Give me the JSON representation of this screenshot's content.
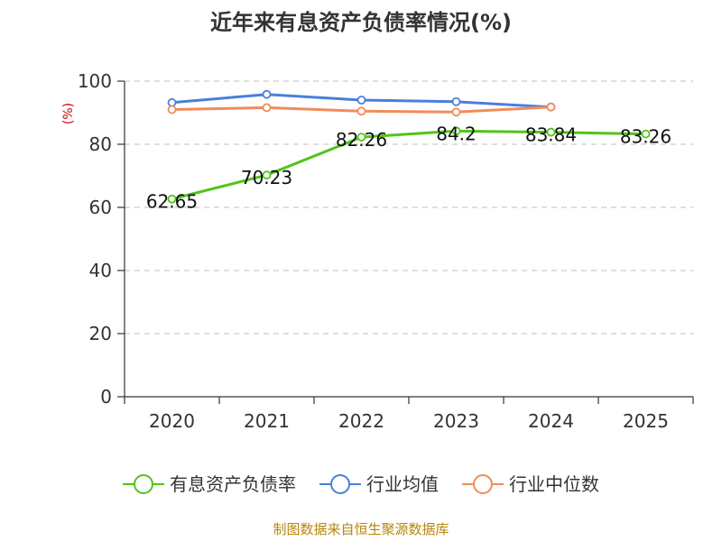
{
  "chart_data": {
    "type": "line",
    "title": "近年来有息资产负债率情况(%)",
    "ylabel": "(%)",
    "xlabel": "",
    "categories": [
      "2020",
      "2021",
      "2022",
      "2023",
      "2024",
      "2025"
    ],
    "ylim": [
      0,
      100
    ],
    "yticks": [
      0,
      20,
      40,
      60,
      80,
      100
    ],
    "grid": true,
    "legend_position": "bottom",
    "series": [
      {
        "name": "有息资产负债率",
        "color": "#52c41a",
        "values": [
          62.65,
          70.23,
          82.26,
          84.2,
          83.84,
          83.26
        ],
        "labels": [
          "62.65",
          "70.23",
          "82.26",
          "84.2",
          "83.84",
          "83.26"
        ],
        "show_labels": true
      },
      {
        "name": "行业均值",
        "color": "#4a7fdb",
        "values": [
          93.2,
          95.8,
          94.0,
          93.5,
          91.8,
          null
        ],
        "show_labels": false
      },
      {
        "name": "行业中位数",
        "color": "#f08c5a",
        "values": [
          91.0,
          91.6,
          90.5,
          90.2,
          91.8,
          null
        ],
        "show_labels": false
      }
    ]
  },
  "source": "制图数据来自恒生聚源数据库"
}
